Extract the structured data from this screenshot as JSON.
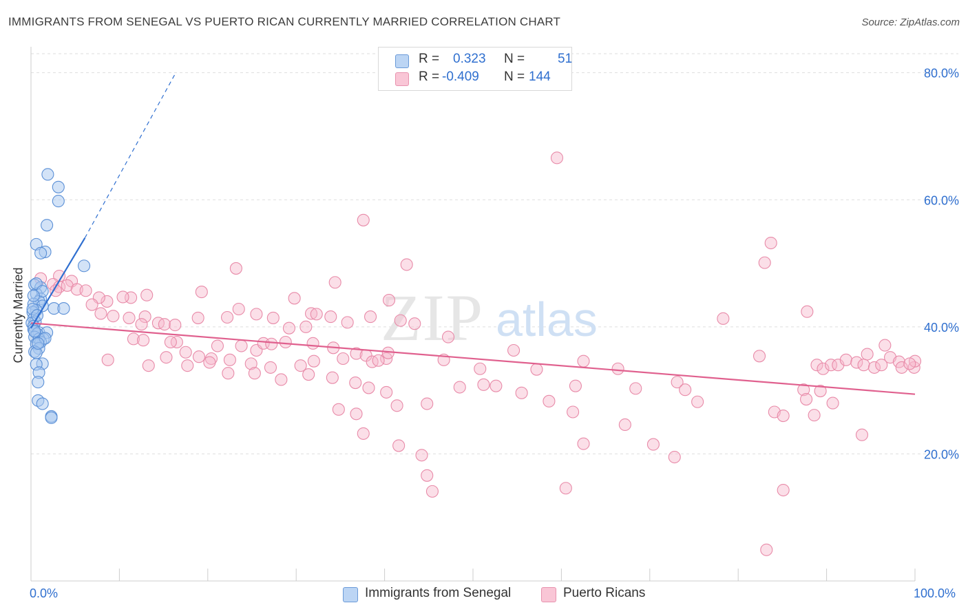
{
  "title": "IMMIGRANTS FROM SENEGAL VS PUERTO RICAN CURRENTLY MARRIED CORRELATION CHART",
  "source": "Source: ZipAtlas.com",
  "watermark": {
    "zip": "ZIP",
    "atlas": "atlas"
  },
  "legend": {
    "rows": [
      {
        "r_label": "R =",
        "r_value": "0.323",
        "n_label": "N =",
        "n_value": "51"
      },
      {
        "r_label": "R =",
        "r_value": "-0.409",
        "n_label": "N =",
        "n_value": "144"
      }
    ]
  },
  "bottom_legend": [
    "Immigrants from Senegal",
    "Puerto Ricans"
  ],
  "axis": {
    "x_min_label": "0.0%",
    "x_max_label": "100.0%",
    "y_label": "Currently Married"
  },
  "colors": {
    "senegal_fill": "#a8c8f0",
    "senegal_stroke": "#5a8fd6",
    "senegal_line": "#2f6fd0",
    "pr_fill": "#f7b9cc",
    "pr_stroke": "#e88aa8",
    "pr_line": "#e0608e",
    "tick_label": "#2f6fcf",
    "grid": "#dddddd"
  },
  "chart_data": {
    "type": "scatter",
    "title": "IMMIGRANTS FROM SENEGAL VS PUERTO RICAN CURRENTLY MARRIED CORRELATION CHART",
    "xlabel": "",
    "ylabel": "Currently Married",
    "xlim": [
      0,
      100
    ],
    "ylim": [
      0,
      83
    ],
    "y_ticks": [
      20,
      40,
      60,
      80
    ],
    "y_tick_labels": [
      "20.0%",
      "40.0%",
      "60.0%",
      "80.0%"
    ],
    "grid": true,
    "legend_position": "top-center",
    "series": [
      {
        "name": "Immigrants from Senegal",
        "R": 0.323,
        "N": 51,
        "trend": {
          "x": [
            0,
            6.1
          ],
          "y": [
            39.8,
            54.0
          ]
        },
        "trend_extension": {
          "x": [
            6.1,
            16.3
          ],
          "y": [
            54.0,
            79.8
          ]
        },
        "points": [
          [
            1.9,
            64
          ],
          [
            3.1,
            62
          ],
          [
            3.1,
            59.8
          ],
          [
            1.8,
            56
          ],
          [
            0.6,
            53
          ],
          [
            1.6,
            51.8
          ],
          [
            1.1,
            51.6
          ],
          [
            6.0,
            49.6
          ],
          [
            0.4,
            46.6
          ],
          [
            1.1,
            46.2
          ],
          [
            0.6,
            45.2
          ],
          [
            1.1,
            44.4
          ],
          [
            0.9,
            44
          ],
          [
            0.3,
            43.6
          ],
          [
            2.6,
            42.9
          ],
          [
            3.7,
            42.9
          ],
          [
            1.3,
            43.3
          ],
          [
            0.6,
            42.6
          ],
          [
            0.2,
            42.3
          ],
          [
            0.3,
            41.3
          ],
          [
            0.5,
            40.8
          ],
          [
            0.1,
            40.6
          ],
          [
            0.3,
            40.1
          ],
          [
            0.3,
            39.6
          ],
          [
            0.9,
            39.1
          ],
          [
            1.8,
            39.1
          ],
          [
            0.7,
            38.9
          ],
          [
            0.4,
            38.4
          ],
          [
            1.4,
            38.1
          ],
          [
            0.9,
            38.1
          ],
          [
            1.1,
            37.6
          ],
          [
            0.6,
            37.3
          ],
          [
            0.9,
            36.6
          ],
          [
            0.4,
            36.1
          ],
          [
            0.6,
            35.9
          ],
          [
            1.3,
            34.2
          ],
          [
            0.6,
            34.1
          ],
          [
            0.9,
            32.8
          ],
          [
            0.8,
            31.3
          ],
          [
            0.8,
            28.4
          ],
          [
            1.3,
            27.9
          ],
          [
            2.3,
            25.9
          ],
          [
            2.3,
            25.7
          ],
          [
            0.6,
            46.8
          ],
          [
            1.3,
            45.6
          ],
          [
            0.3,
            44.9
          ],
          [
            0.2,
            42.8
          ],
          [
            0.7,
            41.8
          ],
          [
            0.4,
            39.3
          ],
          [
            1.6,
            38.2
          ],
          [
            0.8,
            37.4
          ]
        ]
      },
      {
        "name": "Puerto Ricans",
        "R": -0.409,
        "N": 144,
        "trend": {
          "x": [
            0,
            100
          ],
          "y": [
            40.6,
            29.4
          ]
        },
        "points": [
          [
            59.5,
            66.6
          ],
          [
            37.6,
            56.8
          ],
          [
            42.5,
            49.8
          ],
          [
            23.2,
            49.2
          ],
          [
            3.2,
            48
          ],
          [
            4.6,
            47.2
          ],
          [
            34.4,
            47
          ],
          [
            1.1,
            47.6
          ],
          [
            2.5,
            46.7
          ],
          [
            3.2,
            46.3
          ],
          [
            4.1,
            46.5
          ],
          [
            5.2,
            45.9
          ],
          [
            2.8,
            45.7
          ],
          [
            6.2,
            45.7
          ],
          [
            19.3,
            45.5
          ],
          [
            13.1,
            45
          ],
          [
            11.3,
            44.6
          ],
          [
            10.4,
            44.7
          ],
          [
            8.6,
            44
          ],
          [
            7.7,
            44.6
          ],
          [
            29.8,
            44.5
          ],
          [
            40.5,
            44.2
          ],
          [
            6.9,
            43.5
          ],
          [
            23.5,
            42.8
          ],
          [
            25.5,
            42
          ],
          [
            31.7,
            42.1
          ],
          [
            32.3,
            42
          ],
          [
            33.9,
            41.6
          ],
          [
            7.9,
            42.1
          ],
          [
            9.3,
            41.7
          ],
          [
            11.1,
            41.4
          ],
          [
            12.9,
            41.6
          ],
          [
            12.5,
            40.4
          ],
          [
            14.4,
            40.6
          ],
          [
            15.1,
            40.4
          ],
          [
            16.3,
            40.3
          ],
          [
            18.9,
            41.4
          ],
          [
            22.2,
            41.5
          ],
          [
            27.4,
            41.4
          ],
          [
            31.1,
            40
          ],
          [
            35.8,
            40.7
          ],
          [
            29.2,
            39.8
          ],
          [
            38.4,
            41.6
          ],
          [
            41.8,
            41
          ],
          [
            43.4,
            40.5
          ],
          [
            47.2,
            38.4
          ],
          [
            83,
            50.1
          ],
          [
            83.7,
            53.2
          ],
          [
            87.8,
            42.4
          ],
          [
            78.3,
            41.3
          ],
          [
            11.6,
            38.1
          ],
          [
            12.7,
            37.9
          ],
          [
            16.5,
            37.6
          ],
          [
            21.1,
            37
          ],
          [
            23.8,
            37
          ],
          [
            25.5,
            36.3
          ],
          [
            26.3,
            37.4
          ],
          [
            27.2,
            37.3
          ],
          [
            28.8,
            37.6
          ],
          [
            31.9,
            37.4
          ],
          [
            34.2,
            36.7
          ],
          [
            36.8,
            35.8
          ],
          [
            37.9,
            35.5
          ],
          [
            40.2,
            35
          ],
          [
            15.8,
            37.6
          ],
          [
            17.5,
            36
          ],
          [
            19,
            35.3
          ],
          [
            20.4,
            35
          ],
          [
            22.5,
            34.8
          ],
          [
            24.9,
            34.2
          ],
          [
            27.1,
            33.6
          ],
          [
            30.5,
            33.9
          ],
          [
            32,
            34.6
          ],
          [
            35.3,
            35
          ],
          [
            38.6,
            34.5
          ],
          [
            39.3,
            34.7
          ],
          [
            40.4,
            35.9
          ],
          [
            8.7,
            34.8
          ],
          [
            13.3,
            33.9
          ],
          [
            15.3,
            35.2
          ],
          [
            17.7,
            33.9
          ],
          [
            20.2,
            34.4
          ],
          [
            22.3,
            32.7
          ],
          [
            25.3,
            32.7
          ],
          [
            28.3,
            31.7
          ],
          [
            31.4,
            32.5
          ],
          [
            34.1,
            32
          ],
          [
            36.7,
            31.2
          ],
          [
            38.2,
            30.4
          ],
          [
            40.2,
            29.7
          ],
          [
            46.7,
            34.8
          ],
          [
            50.8,
            33.4
          ],
          [
            57.2,
            33.3
          ],
          [
            62.5,
            34.6
          ],
          [
            66.4,
            33.4
          ],
          [
            68.4,
            30.3
          ],
          [
            73.1,
            31.3
          ],
          [
            82.4,
            35.4
          ],
          [
            88.9,
            34
          ],
          [
            89.6,
            33.4
          ],
          [
            90.5,
            34
          ],
          [
            91.3,
            34
          ],
          [
            92.2,
            34.8
          ],
          [
            93.4,
            34.4
          ],
          [
            94.2,
            34
          ],
          [
            94.6,
            35.7
          ],
          [
            95.4,
            33.6
          ],
          [
            96.2,
            34
          ],
          [
            97.2,
            35.2
          ],
          [
            98.2,
            34.5
          ],
          [
            98.5,
            33.6
          ],
          [
            99.9,
            33.6
          ],
          [
            100,
            34.6
          ],
          [
            87.4,
            30.1
          ],
          [
            87.7,
            28.6
          ],
          [
            89.3,
            29.9
          ],
          [
            90.7,
            28
          ],
          [
            84.1,
            26.6
          ],
          [
            85.1,
            26
          ],
          [
            88.6,
            26.1
          ],
          [
            34.8,
            27
          ],
          [
            36.8,
            26.3
          ],
          [
            41.4,
            27.6
          ],
          [
            44.8,
            27.9
          ],
          [
            51.2,
            30.9
          ],
          [
            61.6,
            30.7
          ],
          [
            74,
            30.1
          ],
          [
            75.4,
            28.2
          ],
          [
            58.6,
            28.3
          ],
          [
            61.3,
            26.6
          ],
          [
            67.2,
            24.6
          ],
          [
            70.4,
            21.5
          ],
          [
            62.5,
            21.6
          ],
          [
            37.6,
            23.2
          ],
          [
            41.6,
            21.3
          ],
          [
            44.2,
            19.8
          ],
          [
            44.8,
            16.6
          ],
          [
            45.4,
            14.1
          ],
          [
            60.5,
            14.6
          ],
          [
            72.8,
            19.5
          ],
          [
            85.1,
            14.3
          ],
          [
            83.2,
            4.9
          ],
          [
            48.5,
            30.5
          ],
          [
            52.6,
            30.7
          ],
          [
            54.6,
            36.3
          ],
          [
            94,
            23
          ],
          [
            55.5,
            29.6
          ],
          [
            96.6,
            37.1
          ],
          [
            99.4,
            34.2
          ]
        ]
      }
    ]
  }
}
